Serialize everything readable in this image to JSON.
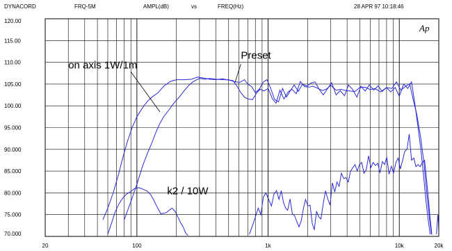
{
  "header": {
    "brand": "DYNACORD",
    "file": "FRQ-5M",
    "y_quantity": "AMPL(dB)",
    "vs": "vs",
    "x_quantity": "FREQ(Hz)",
    "timestamp": "28 APR 97 10:18:46",
    "logo": "Ap"
  },
  "chart_data": {
    "type": "line",
    "x_scale": "log",
    "xlim": [
      20,
      20000
    ],
    "ylim": [
      70,
      120
    ],
    "y_ticks": [
      {
        "value": 120,
        "label": "120.00"
      },
      {
        "value": 115,
        "label": "115.00"
      },
      {
        "value": 110,
        "label": "110.00"
      },
      {
        "value": 105,
        "label": "105.00"
      },
      {
        "value": 100,
        "label": "100.00"
      },
      {
        "value": 95,
        "label": "95.000"
      },
      {
        "value": 90,
        "label": "90.000"
      },
      {
        "value": 85,
        "label": "85.000"
      },
      {
        "value": 80,
        "label": "80.000"
      },
      {
        "value": 75,
        "label": "75.000"
      },
      {
        "value": 70,
        "label": "70.000"
      }
    ],
    "x_ticks": [
      {
        "value": 20,
        "label": "20"
      },
      {
        "value": 100,
        "label": "100"
      },
      {
        "value": 1000,
        "label": "1k"
      },
      {
        "value": 10000,
        "label": "10k"
      },
      {
        "value": 20000,
        "label": "20k"
      }
    ],
    "grid": true,
    "color": "#2a2ad6",
    "annotations": [
      {
        "text": "on axis 1W/1m",
        "x": 30,
        "y": 108.6
      },
      {
        "text": "Preset",
        "x": 620,
        "y": 110.8
      },
      {
        "text": "k2 / 10W",
        "x": 170,
        "y": 79.7
      }
    ],
    "series": [
      {
        "values": [
          [
            55,
            73.8
          ],
          [
            60,
            76.5
          ],
          [
            66,
            80
          ],
          [
            72,
            84
          ],
          [
            78,
            88
          ],
          [
            85,
            92
          ],
          [
            92,
            95
          ],
          [
            100,
            97.5
          ],
          [
            110,
            99.5
          ],
          [
            120,
            101
          ],
          [
            130,
            102
          ],
          [
            145,
            103
          ],
          [
            160,
            104.5
          ],
          [
            180,
            105.6
          ],
          [
            200,
            106
          ],
          [
            230,
            106
          ],
          [
            260,
            106.1
          ],
          [
            290,
            106.6
          ],
          [
            320,
            106.4
          ],
          [
            360,
            106.1
          ],
          [
            400,
            106
          ],
          [
            450,
            106.2
          ],
          [
            500,
            105.9
          ],
          [
            540,
            105.8
          ],
          [
            580,
            104.5
          ],
          [
            620,
            103
          ],
          [
            660,
            102
          ],
          [
            700,
            101.6
          ],
          [
            760,
            101.4
          ],
          [
            820,
            103
          ],
          [
            870,
            103.8
          ],
          [
            930,
            103.4
          ],
          [
            1000,
            104
          ],
          [
            1080,
            101.6
          ],
          [
            1150,
            100.6
          ],
          [
            1230,
            103.6
          ],
          [
            1320,
            101.6
          ],
          [
            1420,
            103.2
          ],
          [
            1520,
            103.8
          ],
          [
            1640,
            102.8
          ],
          [
            1760,
            105.6
          ],
          [
            1900,
            104.4
          ],
          [
            2050,
            104.3
          ],
          [
            2200,
            104.5
          ],
          [
            2400,
            104
          ],
          [
            2600,
            103.5
          ],
          [
            2800,
            103.9
          ],
          [
            3000,
            104.7
          ],
          [
            3300,
            103.6
          ],
          [
            3600,
            103.8
          ],
          [
            3900,
            103.5
          ],
          [
            4200,
            103.4
          ],
          [
            4600,
            103.3
          ],
          [
            5000,
            104.2
          ],
          [
            5500,
            104.3
          ],
          [
            6000,
            103.7
          ],
          [
            6500,
            104
          ],
          [
            7200,
            103.2
          ],
          [
            8000,
            104.2
          ],
          [
            8800,
            104
          ],
          [
            9500,
            105.5
          ],
          [
            10300,
            103.6
          ],
          [
            11200,
            104.5
          ],
          [
            12000,
            105.1
          ],
          [
            12800,
            101.3
          ],
          [
            13600,
            98
          ],
          [
            14500,
            93
          ],
          [
            15400,
            87
          ],
          [
            16200,
            80
          ],
          [
            17000,
            74
          ],
          [
            17600,
            70.5
          ]
        ]
      },
      {
        "values": [
          [
            80,
            73.8
          ],
          [
            90,
            78
          ],
          [
            100,
            82
          ],
          [
            110,
            86
          ],
          [
            120,
            89
          ],
          [
            130,
            91.5
          ],
          [
            140,
            94
          ],
          [
            150,
            96
          ],
          [
            160,
            97.5
          ],
          [
            175,
            99
          ],
          [
            190,
            100.5
          ],
          [
            210,
            102
          ],
          [
            230,
            103.5
          ],
          [
            250,
            104.8
          ],
          [
            270,
            105.6
          ],
          [
            300,
            106.3
          ],
          [
            330,
            106.1
          ],
          [
            360,
            106.3
          ],
          [
            400,
            106.1
          ],
          [
            450,
            106
          ],
          [
            500,
            106
          ],
          [
            560,
            105.5
          ],
          [
            610,
            105.4
          ],
          [
            660,
            106
          ],
          [
            700,
            105
          ],
          [
            750,
            104.4
          ],
          [
            800,
            103
          ],
          [
            860,
            103.9
          ],
          [
            920,
            105.5
          ],
          [
            980,
            106
          ],
          [
            1040,
            104.2
          ],
          [
            1120,
            101.5
          ],
          [
            1200,
            100.9
          ],
          [
            1290,
            104
          ],
          [
            1380,
            102
          ],
          [
            1480,
            103.5
          ],
          [
            1580,
            104.8
          ],
          [
            1700,
            103.3
          ],
          [
            1830,
            105
          ],
          [
            1970,
            104.5
          ],
          [
            2120,
            105.2
          ],
          [
            2280,
            105.5
          ],
          [
            2450,
            103.8
          ],
          [
            2630,
            102.5
          ],
          [
            2830,
            103.9
          ],
          [
            3050,
            105.3
          ],
          [
            3300,
            102.5
          ],
          [
            3550,
            103.5
          ],
          [
            3820,
            102.3
          ],
          [
            4100,
            104.8
          ],
          [
            4400,
            103.8
          ],
          [
            4750,
            102
          ],
          [
            5100,
            104.5
          ],
          [
            5500,
            103.4
          ],
          [
            5900,
            104.8
          ],
          [
            6400,
            103.6
          ],
          [
            6900,
            104.6
          ],
          [
            7400,
            103.3
          ],
          [
            8000,
            104.2
          ],
          [
            8600,
            103.2
          ],
          [
            9300,
            104.2
          ],
          [
            10000,
            102.2
          ],
          [
            10800,
            105
          ],
          [
            11600,
            104
          ],
          [
            12400,
            105.5
          ],
          [
            13200,
            100
          ],
          [
            13900,
            95
          ],
          [
            14600,
            90
          ],
          [
            15300,
            84
          ],
          [
            16000,
            78
          ],
          [
            16600,
            73.8
          ],
          [
            17200,
            70.5
          ]
        ]
      },
      {
        "values": [
          [
            60,
            70.5
          ],
          [
            64,
            73
          ],
          [
            68,
            75.5
          ],
          [
            73,
            77.5
          ],
          [
            78,
            78.8
          ],
          [
            84,
            79.8
          ],
          [
            90,
            80.3
          ],
          [
            96,
            81
          ],
          [
            104,
            81.2
          ],
          [
            112,
            80.8
          ],
          [
            120,
            80.4
          ],
          [
            128,
            79.5
          ],
          [
            136,
            78
          ],
          [
            144,
            76.5
          ],
          [
            152,
            75.2
          ],
          [
            160,
            75.3
          ],
          [
            168,
            75.5
          ],
          [
            176,
            76
          ],
          [
            185,
            76.5
          ],
          [
            195,
            75.8
          ],
          [
            205,
            74.5
          ],
          [
            215,
            73.2
          ],
          [
            225,
            72.2
          ],
          [
            235,
            70.8
          ],
          [
            245,
            70.2
          ]
        ]
      },
      {
        "values": [
          [
            720,
            70.5
          ],
          [
            760,
            72.5
          ],
          [
            800,
            74.5
          ],
          [
            840,
            76.5
          ],
          [
            880,
            75
          ],
          [
            920,
            79
          ],
          [
            960,
            80
          ],
          [
            1010,
            78.5
          ],
          [
            1060,
            77
          ],
          [
            1110,
            79.8
          ],
          [
            1160,
            80.5
          ],
          [
            1210,
            78.5
          ],
          [
            1260,
            80.5
          ],
          [
            1310,
            77.8
          ],
          [
            1360,
            76.5
          ],
          [
            1410,
            76
          ],
          [
            1470,
            78.6
          ],
          [
            1530,
            75.2
          ],
          [
            1590,
            74.8
          ],
          [
            1650,
            73.5
          ],
          [
            1720,
            72.2
          ],
          [
            1790,
            73.6
          ],
          [
            1860,
            76.5
          ],
          [
            1930,
            78.5
          ],
          [
            2010,
            77
          ],
          [
            2090,
            77.2
          ],
          [
            2170,
            73
          ],
          [
            2250,
            71.5
          ],
          [
            2340,
            75.8
          ],
          [
            2430,
            74.5
          ],
          [
            2530,
            74
          ],
          [
            2630,
            77.5
          ],
          [
            2740,
            80.5
          ],
          [
            2850,
            78.6
          ],
          [
            2970,
            77.2
          ],
          [
            3090,
            82.3
          ],
          [
            3220,
            80.2
          ],
          [
            3350,
            82.5
          ],
          [
            3480,
            81.5
          ],
          [
            3620,
            84.5
          ],
          [
            3770,
            83.3
          ],
          [
            3920,
            83.5
          ],
          [
            4080,
            82.5
          ],
          [
            4250,
            85
          ],
          [
            4420,
            85.8
          ],
          [
            4600,
            86.5
          ],
          [
            4780,
            85
          ],
          [
            4970,
            86.5
          ],
          [
            5170,
            87
          ],
          [
            5380,
            84.5
          ],
          [
            5600,
            85.3
          ],
          [
            5830,
            88.5
          ],
          [
            6070,
            85.8
          ],
          [
            6320,
            87
          ],
          [
            6580,
            86.3
          ],
          [
            6850,
            86.8
          ],
          [
            7130,
            84.6
          ],
          [
            7420,
            87.2
          ],
          [
            7720,
            86.5
          ],
          [
            8030,
            88.2
          ],
          [
            8360,
            84.3
          ],
          [
            8700,
            86.1
          ],
          [
            9050,
            84.6
          ],
          [
            9420,
            87
          ],
          [
            9800,
            88
          ],
          [
            10200,
            85.5
          ],
          [
            10600,
            87.5
          ],
          [
            11000,
            89.5
          ],
          [
            11450,
            90
          ],
          [
            11900,
            93.5
          ],
          [
            12400,
            87.5
          ],
          [
            12900,
            88
          ],
          [
            13400,
            86
          ],
          [
            13900,
            86.5
          ],
          [
            14400,
            86
          ],
          [
            15000,
            87
          ],
          [
            15600,
            87.5
          ],
          [
            16200,
            82.6
          ],
          [
            16700,
            78.5
          ],
          [
            17200,
            74
          ],
          [
            17700,
            70.5
          ]
        ]
      },
      {
        "values": [
          [
            19200,
            70.5
          ],
          [
            19450,
            73
          ],
          [
            19700,
            75
          ],
          [
            19900,
            73
          ],
          [
            20000,
            71
          ]
        ]
      }
    ]
  }
}
